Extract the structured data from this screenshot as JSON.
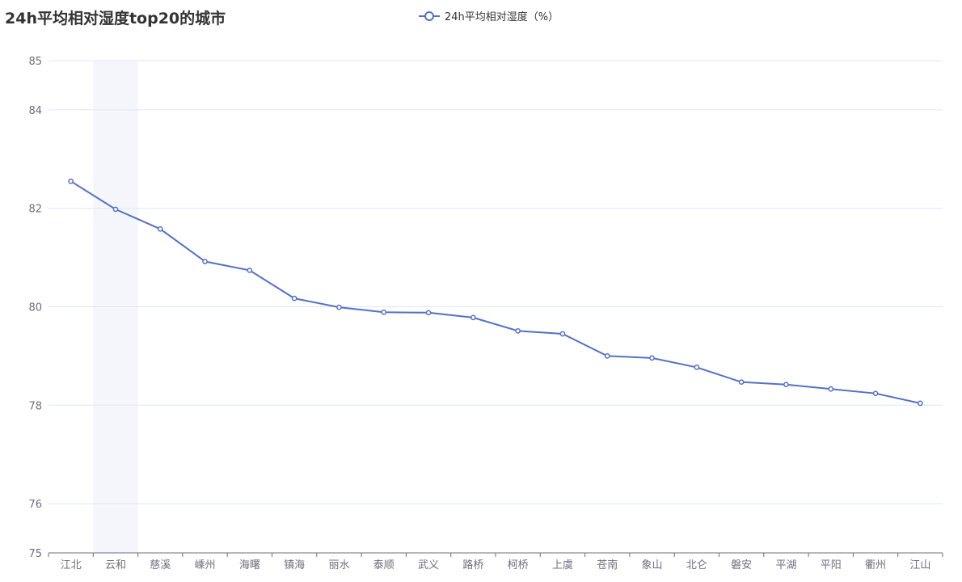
{
  "chart_data": {
    "type": "line",
    "title": "24h平均相对湿度top20的城市",
    "categories": [
      "江北",
      "云和",
      "慈溪",
      "嵊州",
      "海曙",
      "镇海",
      "丽水",
      "泰顺",
      "武义",
      "路桥",
      "柯桥",
      "上虞",
      "苍南",
      "象山",
      "北仑",
      "磐安",
      "平湖",
      "平阳",
      "衢州",
      "江山"
    ],
    "series": [
      {
        "name": "24h平均相对湿度（%）",
        "values": [
          82.55,
          81.98,
          81.58,
          80.92,
          80.74,
          80.17,
          79.99,
          79.89,
          79.88,
          79.78,
          79.51,
          79.45,
          79.0,
          78.96,
          78.77,
          78.47,
          78.42,
          78.33,
          78.24,
          78.04
        ]
      }
    ],
    "ylim": [
      75,
      85
    ],
    "yticks": [
      75,
      76,
      78,
      80,
      82,
      84,
      85
    ],
    "grid": true,
    "legend_position": "top-center",
    "highlighted_category": "云和",
    "colors": {
      "line": "#5470c6",
      "grid": "#e0e6f1",
      "axis": "#6e7079",
      "highlight": "#f4f6fb"
    }
  }
}
